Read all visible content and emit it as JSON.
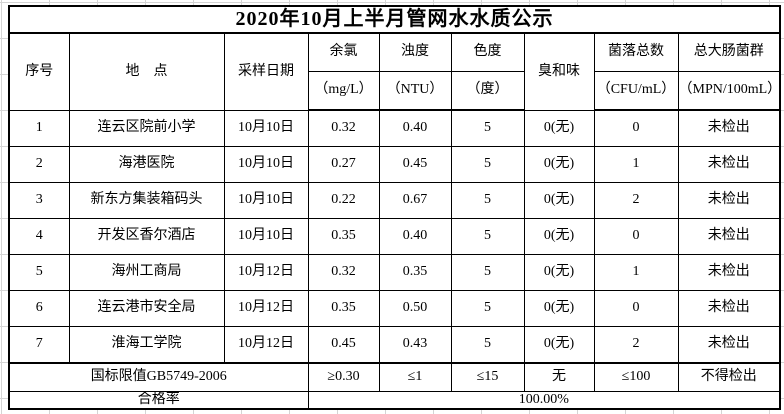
{
  "title": "2020年10月上半月管网水水质公示",
  "table": {
    "columns": [
      {
        "label": "序号",
        "unit": ""
      },
      {
        "label": "地　点",
        "unit": ""
      },
      {
        "label": "采样日期",
        "unit": ""
      },
      {
        "label": "余氯",
        "unit": "（mg/L）"
      },
      {
        "label": "浊度",
        "unit": "（NTU）"
      },
      {
        "label": "色度",
        "unit": "（度）"
      },
      {
        "label": "臭和味",
        "unit": ""
      },
      {
        "label": "菌落总数",
        "unit": "（CFU/mL）"
      },
      {
        "label": "总大肠菌群",
        "unit": "（MPN/100mL）"
      }
    ],
    "rows": [
      [
        "1",
        "连云区院前小学",
        "10月10日",
        "0.32",
        "0.40",
        "5",
        "0(无)",
        "0",
        "未检出"
      ],
      [
        "2",
        "海港医院",
        "10月10日",
        "0.27",
        "0.45",
        "5",
        "0(无)",
        "1",
        "未检出"
      ],
      [
        "3",
        "新东方集装箱码头",
        "10月10日",
        "0.22",
        "0.67",
        "5",
        "0(无)",
        "2",
        "未检出"
      ],
      [
        "4",
        "开发区香尔酒店",
        "10月10日",
        "0.35",
        "0.40",
        "5",
        "0(无)",
        "0",
        "未检出"
      ],
      [
        "5",
        "海州工商局",
        "10月12日",
        "0.32",
        "0.35",
        "5",
        "0(无)",
        "1",
        "未检出"
      ],
      [
        "6",
        "连云港市安全局",
        "10月12日",
        "0.35",
        "0.50",
        "5",
        "0(无)",
        "0",
        "未检出"
      ],
      [
        "7",
        "淮海工学院",
        "10月12日",
        "0.45",
        "0.43",
        "5",
        "0(无)",
        "2",
        "未检出"
      ]
    ],
    "limit_row": {
      "label": "国标限值GB5749-2006",
      "values": [
        "≥0.30",
        "≤1",
        "≤15",
        "无",
        "≤100",
        "不得检出"
      ]
    },
    "rate_row": {
      "label": "合格率",
      "value": "100.00%"
    }
  }
}
